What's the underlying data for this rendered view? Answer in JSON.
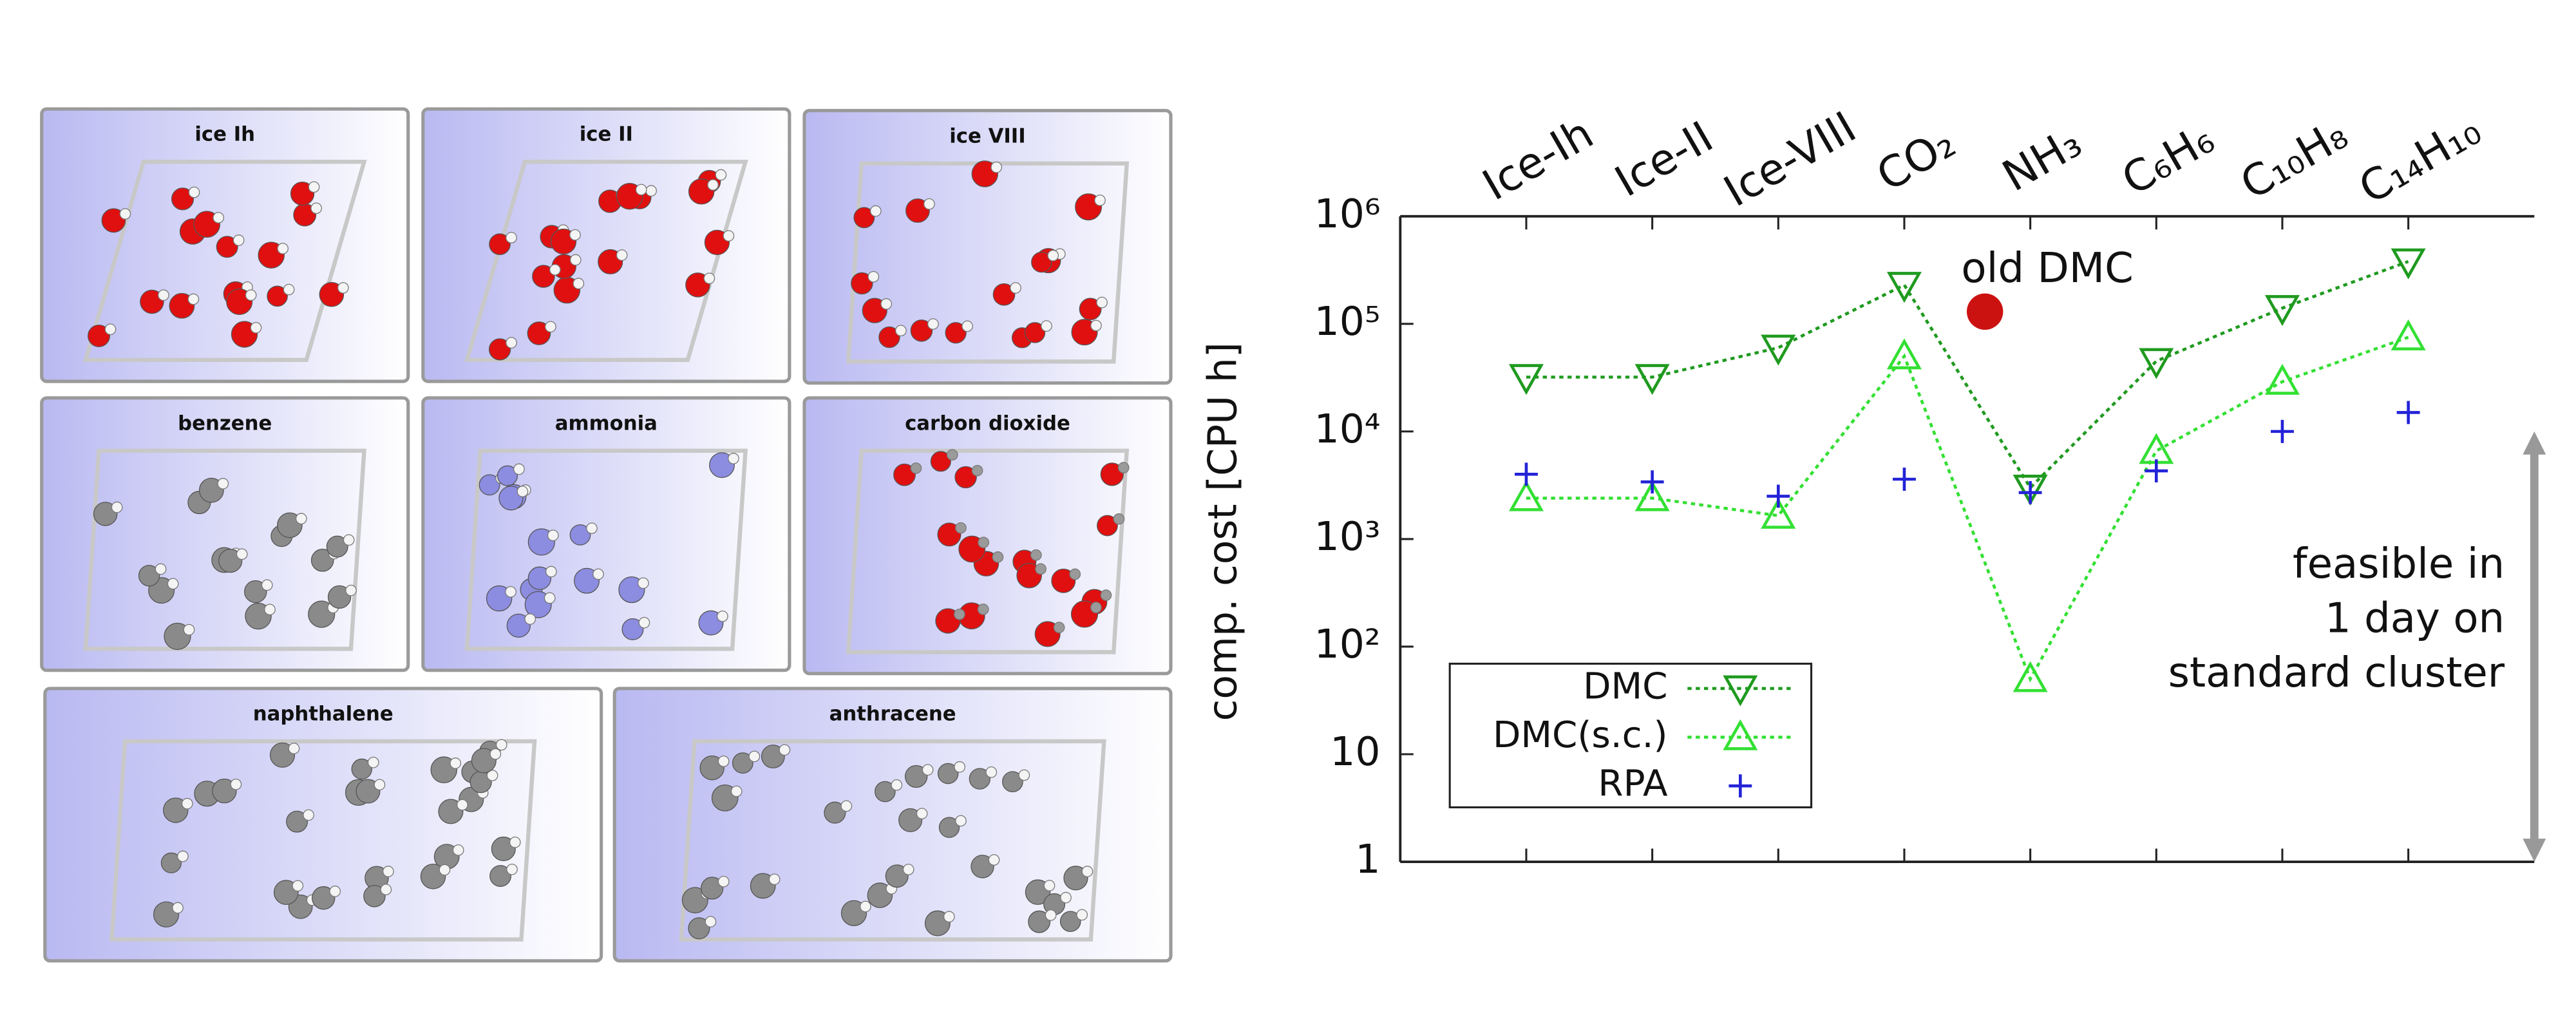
{
  "panels": [
    {
      "title": "ice Ih",
      "atoms": "ice"
    },
    {
      "title": "ice II",
      "atoms": "ice"
    },
    {
      "title": "ice VIII",
      "atoms": "ice"
    },
    {
      "title": "benzene",
      "atoms": "carbon"
    },
    {
      "title": "ammonia",
      "atoms": "nitrogen"
    },
    {
      "title": "carbon dioxide",
      "atoms": "co2"
    },
    {
      "title": "naphthalene",
      "atoms": "carbon"
    },
    {
      "title": "anthracene",
      "atoms": "carbon"
    }
  ],
  "chart_data": {
    "type": "line",
    "y_label": "comp. cost [CPU h]",
    "categories": [
      "Ice-Ih",
      "Ice-II",
      "Ice-VIII",
      "CO₂",
      "NH₃",
      "C₆H₆",
      "C₁₀H₈",
      "C₁₄H₁₀"
    ],
    "log_y": true,
    "ylim": [
      1,
      1000000
    ],
    "yticks": [
      1,
      10,
      {
        "value": 100,
        "label": "10²"
      },
      {
        "value": 1000,
        "label": "10³"
      },
      {
        "value": 10000,
        "label": "10⁴"
      },
      {
        "value": 100000,
        "label": "10⁵"
      },
      {
        "value": 1000000,
        "label": "10⁶"
      }
    ],
    "legend": "lower left",
    "series": [
      {
        "name": "DMC",
        "color": "#1f9a1f",
        "marker": "triangle-down",
        "line": true,
        "values": [
          32000,
          32000,
          60000,
          230000,
          3000,
          45000,
          140000,
          380000
        ]
      },
      {
        "name": "DMC(s.c.)",
        "color": "#33e033",
        "marker": "triangle-up",
        "line": true,
        "values": [
          2400,
          2400,
          1650,
          50000,
          50,
          6600,
          29000,
          75000
        ]
      },
      {
        "name": "RPA",
        "color": "#2323d8",
        "marker": "plus",
        "line": false,
        "values": [
          4000,
          3400,
          2500,
          3600,
          2700,
          4300,
          10000,
          15000
        ]
      }
    ],
    "annotations": [
      {
        "text": "old DMC",
        "value": 130000,
        "color": "#cc1111"
      },
      {
        "text": [
          "feasible in",
          "1 day on",
          "standard cluster"
        ],
        "range": [
          1,
          10000
        ],
        "color": "#999999"
      }
    ]
  }
}
